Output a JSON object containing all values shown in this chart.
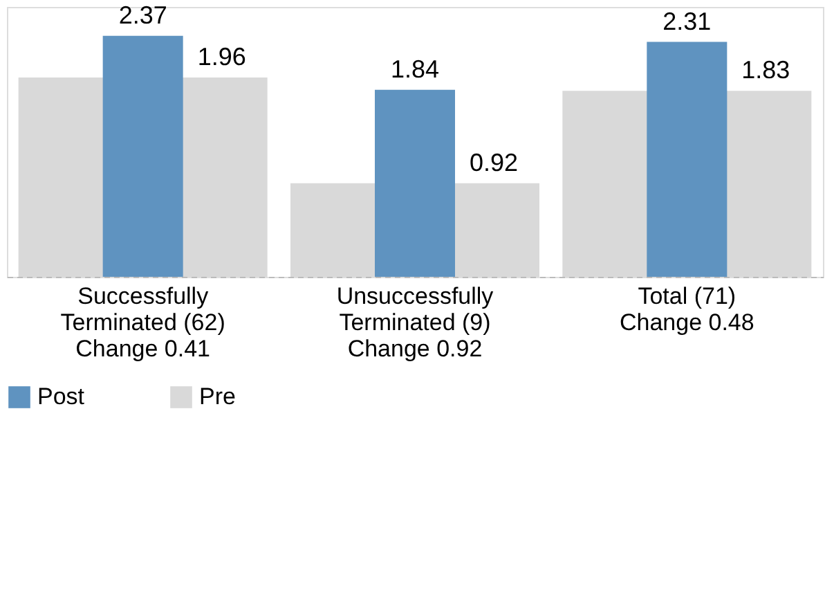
{
  "chart_data": {
    "type": "bar",
    "categories": [
      "Successfully\nTerminated (62)\nChange 0.41",
      "Unsuccessfully\nTerminated (9)\nChange 0.92",
      "Total (71)\nChange 0.48"
    ],
    "series": [
      {
        "name": "Post",
        "color": "#5f93c0",
        "values": [
          2.37,
          1.84,
          2.31
        ]
      },
      {
        "name": "Pre",
        "color": "#d9d9d9",
        "values": [
          1.96,
          0.92,
          1.83
        ]
      }
    ],
    "data_labels": true,
    "legend": "bottom",
    "grid": false
  }
}
